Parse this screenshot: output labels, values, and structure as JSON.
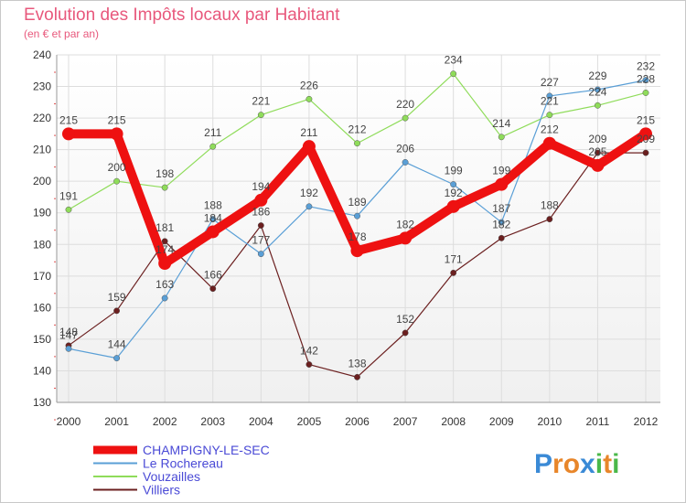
{
  "chart_data": {
    "type": "line",
    "title": "Evolution des Impôts locaux par Habitant",
    "subtitle": "(en € et par an)",
    "xlabel": "",
    "ylabel": "",
    "categories": [
      "2000",
      "2001",
      "2002",
      "2003",
      "2004",
      "2005",
      "2006",
      "2007",
      "2008",
      "2009",
      "2010",
      "2011",
      "2012"
    ],
    "ylim": [
      130,
      240
    ],
    "yticks": [
      130,
      140,
      150,
      160,
      170,
      180,
      190,
      200,
      210,
      220,
      230,
      240
    ],
    "grid": true,
    "series": [
      {
        "name": "Villiers",
        "color": "#6b1f1f",
        "values": [
          148,
          159,
          181,
          166,
          186,
          142,
          138,
          152,
          171,
          182,
          188,
          209,
          209
        ]
      },
      {
        "name": "Vouzailles",
        "color": "#8fdc5a",
        "values": [
          191,
          200,
          198,
          211,
          221,
          226,
          212,
          220,
          234,
          214,
          221,
          224,
          228
        ]
      },
      {
        "name": "Le Rochereau",
        "color": "#5a9fd6",
        "values": [
          147,
          144,
          163,
          188,
          177,
          192,
          189,
          206,
          199,
          187,
          227,
          229,
          232
        ]
      },
      {
        "name": "CHAMPIGNY-LE-SEC",
        "color": "#ee1111",
        "values": [
          215,
          215,
          174,
          184,
          194,
          211,
          178,
          182,
          192,
          199,
          212,
          205,
          215
        ]
      }
    ],
    "legend": [
      "CHAMPIGNY-LE-SEC",
      "Le Rochereau",
      "Vouzailles",
      "Villiers"
    ],
    "logo": "Proxiti"
  }
}
